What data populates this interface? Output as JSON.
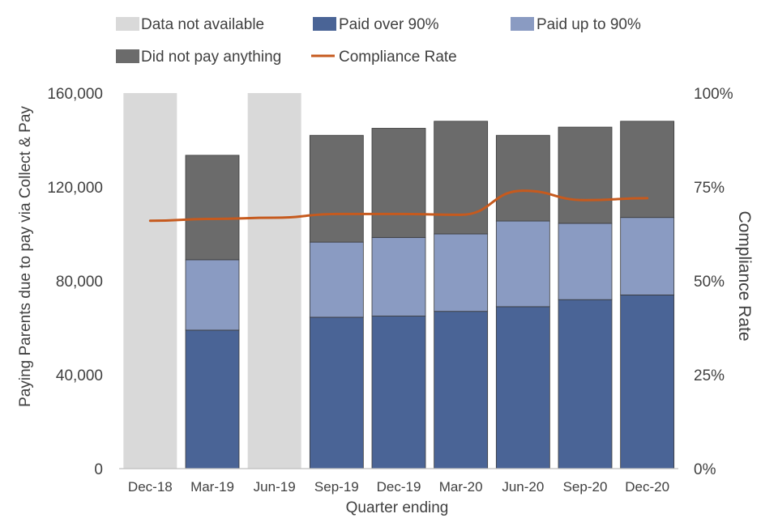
{
  "chart_data": {
    "type": "bar",
    "stacked": true,
    "title": "",
    "xlabel": "Quarter ending",
    "ylabel": "Paying Parents due to pay via Collect & Pay",
    "y2label": "Compliance Rate",
    "categories": [
      "Dec-18",
      "Mar-19",
      "Jun-19",
      "Sep-19",
      "Dec-19",
      "Mar-20",
      "Jun-20",
      "Sep-20",
      "Dec-20"
    ],
    "ylim": [
      0,
      160000
    ],
    "y2lim": [
      0,
      1
    ],
    "yticks": [
      0,
      40000,
      80000,
      120000,
      160000
    ],
    "ytick_labels": [
      "0",
      "40,000",
      "80,000",
      "120,000",
      "160,000"
    ],
    "y2ticks": [
      0,
      0.25,
      0.5,
      0.75,
      1
    ],
    "y2tick_labels": [
      "0%",
      "25%",
      "50%",
      "75%",
      "100%"
    ],
    "legend_position": "top",
    "unavailable": {
      "name": "Data not available",
      "color": "#d9d9d9",
      "flags": [
        true,
        false,
        true,
        false,
        false,
        false,
        false,
        false,
        false
      ]
    },
    "series": [
      {
        "name": "Paid over 90%",
        "color": "#4a6496",
        "values": [
          null,
          59000,
          null,
          64500,
          65000,
          67000,
          69000,
          72000,
          74000
        ]
      },
      {
        "name": "Paid up to 90%",
        "color": "#8a9bc2",
        "values": [
          null,
          30000,
          null,
          32000,
          33500,
          33000,
          36500,
          32500,
          33000
        ]
      },
      {
        "name": "Did not pay anything",
        "color": "#6b6b6b",
        "values": [
          null,
          44500,
          null,
          45500,
          46500,
          48000,
          36500,
          41000,
          41000
        ]
      }
    ],
    "line": {
      "name": "Compliance Rate",
      "color": "#c65a1e",
      "axis": "right",
      "values": [
        0.66,
        0.665,
        0.668,
        0.678,
        0.678,
        0.676,
        0.74,
        0.715,
        0.72
      ]
    }
  }
}
